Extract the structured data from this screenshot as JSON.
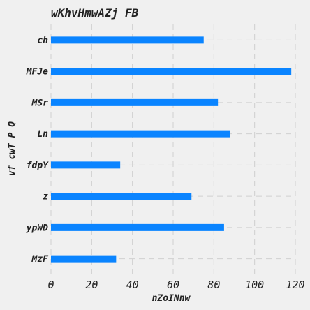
{
  "chart_data": {
    "type": "bar",
    "orientation": "horizontal",
    "title": "wKhvHmwAZj FB",
    "xlabel": "nZoINnw",
    "ylabel": "vf cwT P Q",
    "categories": [
      "ch",
      "MFJe",
      "MSr",
      "Ln",
      "fdpY",
      "z",
      "ypWD",
      "MzF"
    ],
    "values": [
      75,
      118,
      82,
      88,
      34,
      69,
      85,
      32
    ],
    "xlim": [
      0,
      120
    ],
    "xticks": [
      0,
      20,
      40,
      60,
      80,
      100,
      120
    ],
    "grid": true,
    "bar_color": "#0a84ff",
    "background": "#f0f0f0"
  }
}
